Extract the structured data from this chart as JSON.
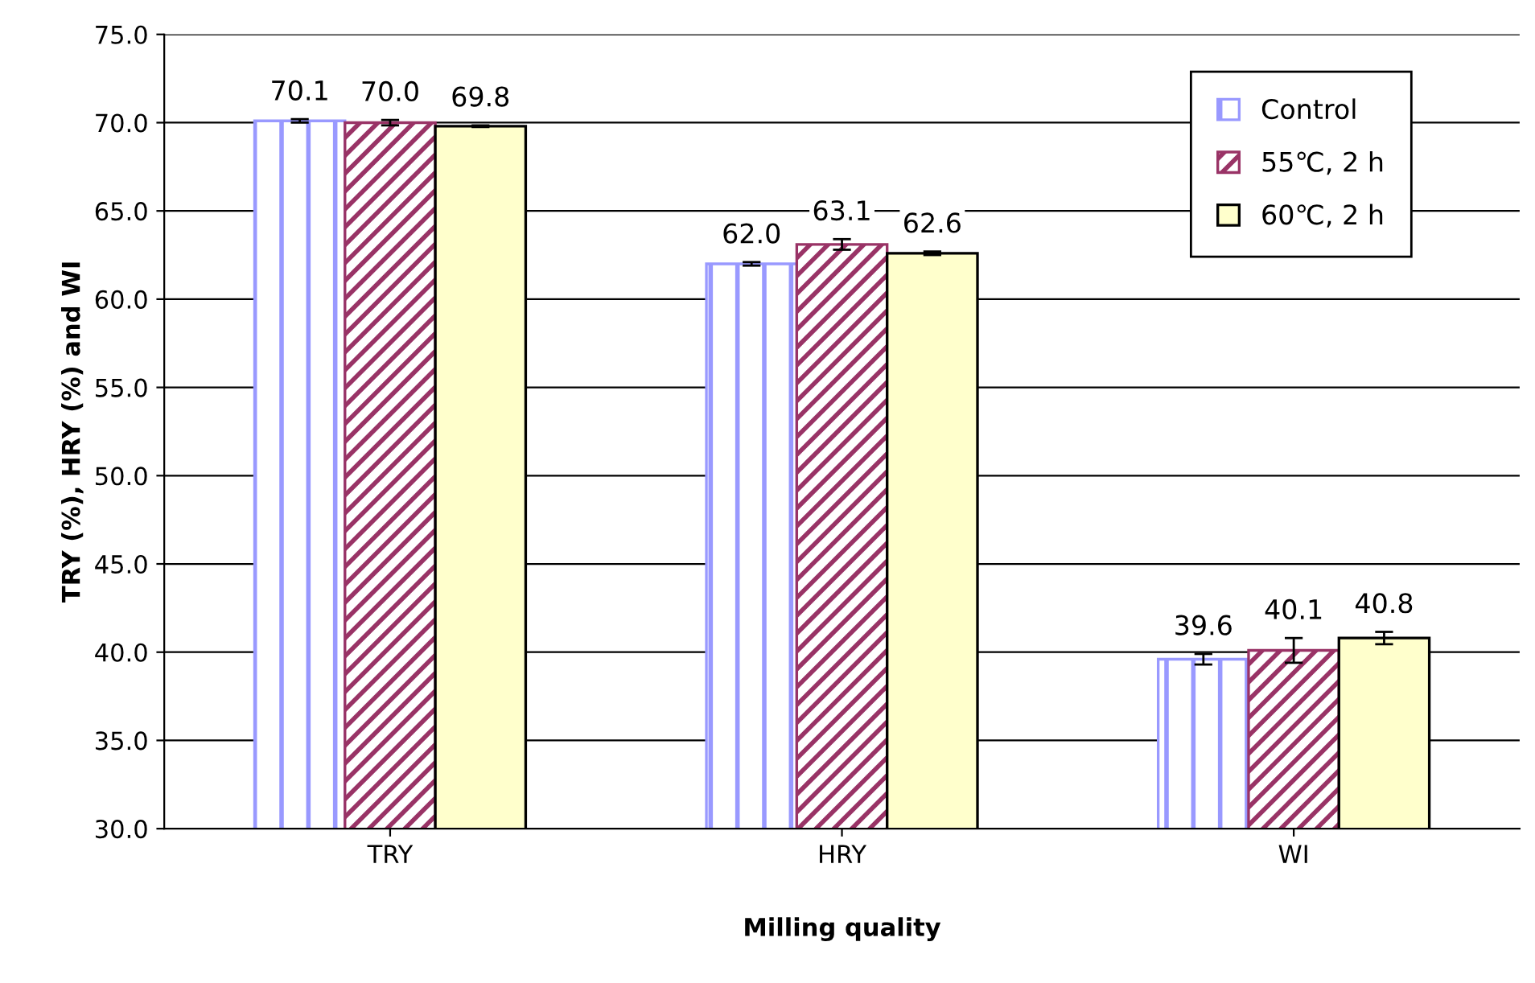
{
  "chart_data": {
    "type": "bar",
    "xlabel": "Milling quality",
    "ylabel": "TRY (%), HRY (%) and WI",
    "categories": [
      "TRY",
      "HRY",
      "WI"
    ],
    "series": [
      {
        "name": "Control",
        "color": "#9999ff",
        "values": [
          70.1,
          62.0,
          39.6
        ],
        "value_labels": [
          "70.1",
          "62.0",
          "39.6"
        ],
        "errors": [
          0.1,
          0.1,
          0.3
        ]
      },
      {
        "name": "55℃, 2 h",
        "color": "#993366",
        "values": [
          70.0,
          63.1,
          40.1
        ],
        "value_labels": [
          "70.0",
          "63.1",
          "40.1"
        ],
        "errors": [
          0.15,
          0.3,
          0.7
        ]
      },
      {
        "name": "60℃, 2 h",
        "color": "#ffffcc",
        "values": [
          69.8,
          62.6,
          40.8
        ],
        "value_labels": [
          "69.8",
          "62.6",
          "40.8"
        ],
        "errors": [
          0.05,
          0.1,
          0.35
        ]
      }
    ],
    "ylim": [
      30,
      75
    ],
    "yticks": [
      {
        "value": 30,
        "label": "30.0"
      },
      {
        "value": 35,
        "label": "35.0"
      },
      {
        "value": 40,
        "label": "40.0"
      },
      {
        "value": 45,
        "label": "45.0"
      },
      {
        "value": 50,
        "label": "50.0"
      },
      {
        "value": 55,
        "label": "55.0"
      },
      {
        "value": 60,
        "label": "60.0"
      },
      {
        "value": 65,
        "label": "65.0"
      },
      {
        "value": 70,
        "label": "70.0"
      },
      {
        "value": 75,
        "label": "75.0"
      }
    ],
    "grid": "y",
    "legend": "top right"
  }
}
